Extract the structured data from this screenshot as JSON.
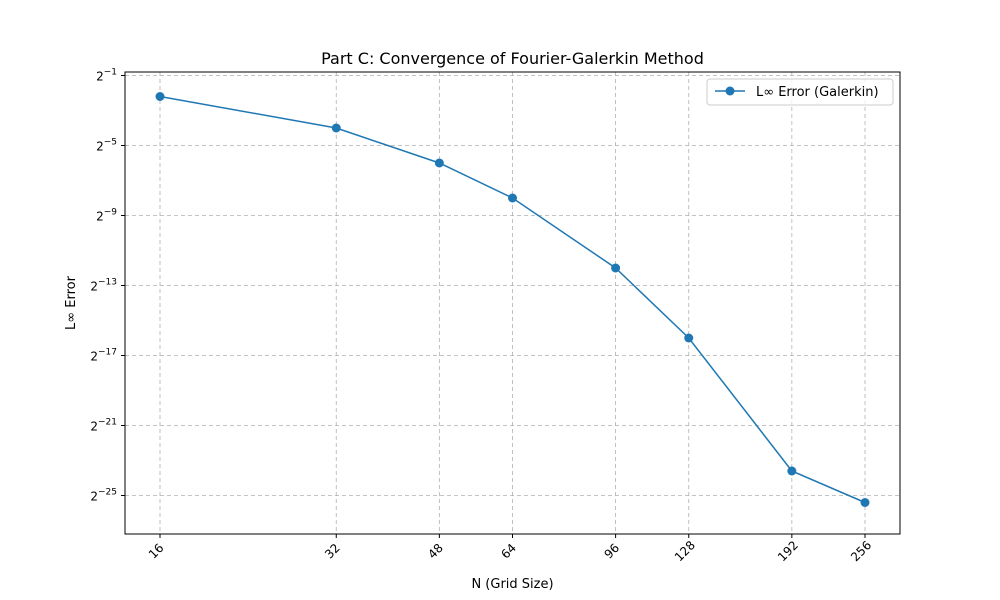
{
  "chart_data": {
    "type": "line",
    "title": "Part C: Convergence of Fourier-Galerkin Method",
    "xlabel": "N (Grid Size)",
    "ylabel": "L∞ Error",
    "x_scale": "log2",
    "y_scale": "log2",
    "x": [
      16,
      32,
      48,
      64,
      96,
      128,
      192,
      256
    ],
    "x_tick_labels": [
      "16",
      "32",
      "48",
      "64",
      "96",
      "128",
      "192",
      "256"
    ],
    "y_ticks": [
      {
        "exp": -1,
        "base": "2",
        "sup": "−1"
      },
      {
        "exp": -5,
        "base": "2",
        "sup": "−5"
      },
      {
        "exp": -9,
        "base": "2",
        "sup": "−9"
      },
      {
        "exp": -13,
        "base": "2",
        "sup": "−13"
      },
      {
        "exp": -17,
        "base": "2",
        "sup": "−17"
      },
      {
        "exp": -21,
        "base": "2",
        "sup": "−21"
      },
      {
        "exp": -25,
        "base": "2",
        "sup": "−25"
      }
    ],
    "ylim_log2": [
      -27.2,
      -0.8
    ],
    "grid": true,
    "legend_position": "top-right",
    "series": [
      {
        "name": "L∞ Error (Galerkin)",
        "color": "#1f77b4",
        "marker": "circle",
        "values_log2": [
          -2.2,
          -4.0,
          -6.0,
          -8.0,
          -12.0,
          -16.0,
          -23.6,
          -25.4
        ]
      }
    ]
  }
}
